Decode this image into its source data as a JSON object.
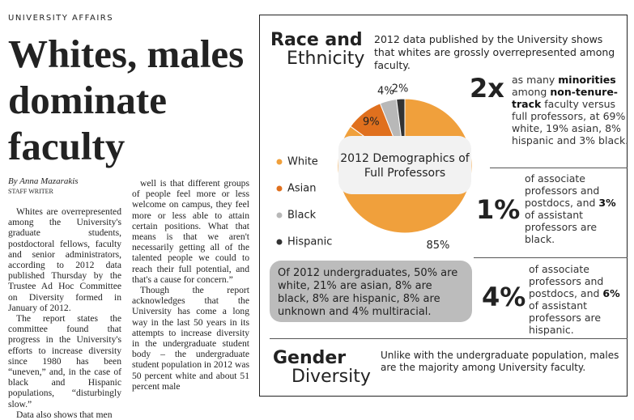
{
  "article": {
    "section": "UNIVERSITY AFFAIRS",
    "headline": "Whites, males dominate faculty",
    "byline": "By Anna Mazarakis",
    "role": "STAFF WRITER",
    "column1": [
      "Whites are overrepresented among the University's graduate students, postdoctoral fellows, faculty and senior administrators, according to 2012 data published Thursday by the Trustee Ad Hoc Committee on Diversity formed in January of 2012.",
      "The report states the committee found that progress in the University's efforts to increase diversity since 1980 has been “uneven,” and, in the case of black and Hispanic populations, “disturbingly slow.”",
      "Data also shows that men"
    ],
    "column2": [
      "well is that different groups of people feel more or less welcome on campus, they feel more or less able to attain certain positions. What that means is that we aren't necessarily getting all of the talented people we could to reach their full potential, and that's a cause for concern.”",
      "Though the report acknowledges that the University has come a long way in the last 50 years in its attempts to increase diversity in the undergraduate student body – the undergraduate student population in 2012 was 50 percent white and about 51 percent male"
    ]
  },
  "infographic": {
    "race_title": [
      "Race and",
      "Ethnicity"
    ],
    "race_intro": "2012 data published by the University shows that whites are grossly overrepresented among faculty.",
    "stats": [
      {
        "figure": "2x",
        "text": [
          "as many ",
          "minorities",
          " among ",
          "non-tenure-track",
          " faculty versus full professors, at 69% white, 19% asian, 8% hispanic and 3% black."
        ]
      },
      {
        "figure": "1%",
        "text": [
          "of associate professors and postdocs, and ",
          "3%",
          " of assistant professors are black."
        ]
      },
      {
        "figure": "4%",
        "text": [
          "of associate professors and postdocs, and ",
          "6%",
          " of assistant professors are hispanic."
        ]
      }
    ],
    "undergrad_note": "Of 2012 undergraduates, 50% are white, 21% are asian, 8% are black, 8% are hispanic, 8% are unknown and 4% multiracial.",
    "gender_title": [
      "Gender",
      "Diversity"
    ],
    "gender_intro": "Unlike with the undergraduate population, males are the majority among University faculty."
  },
  "chart_data": {
    "type": "pie",
    "title": "2012 Demographics of Full Professors",
    "series": [
      {
        "name": "White",
        "color": "#f0a03c",
        "values": [
          85
        ],
        "value_labels": [
          "85%"
        ]
      },
      {
        "name": "Asian",
        "color": "#e0701e",
        "values": [
          9
        ],
        "value_labels": [
          "9%"
        ]
      },
      {
        "name": "Black",
        "color": "#b8b8b8",
        "values": [
          4
        ],
        "value_labels": [
          "4%"
        ]
      },
      {
        "name": "Hispanic",
        "color": "#333333",
        "values": [
          2
        ],
        "value_labels": [
          "2%"
        ]
      }
    ]
  }
}
